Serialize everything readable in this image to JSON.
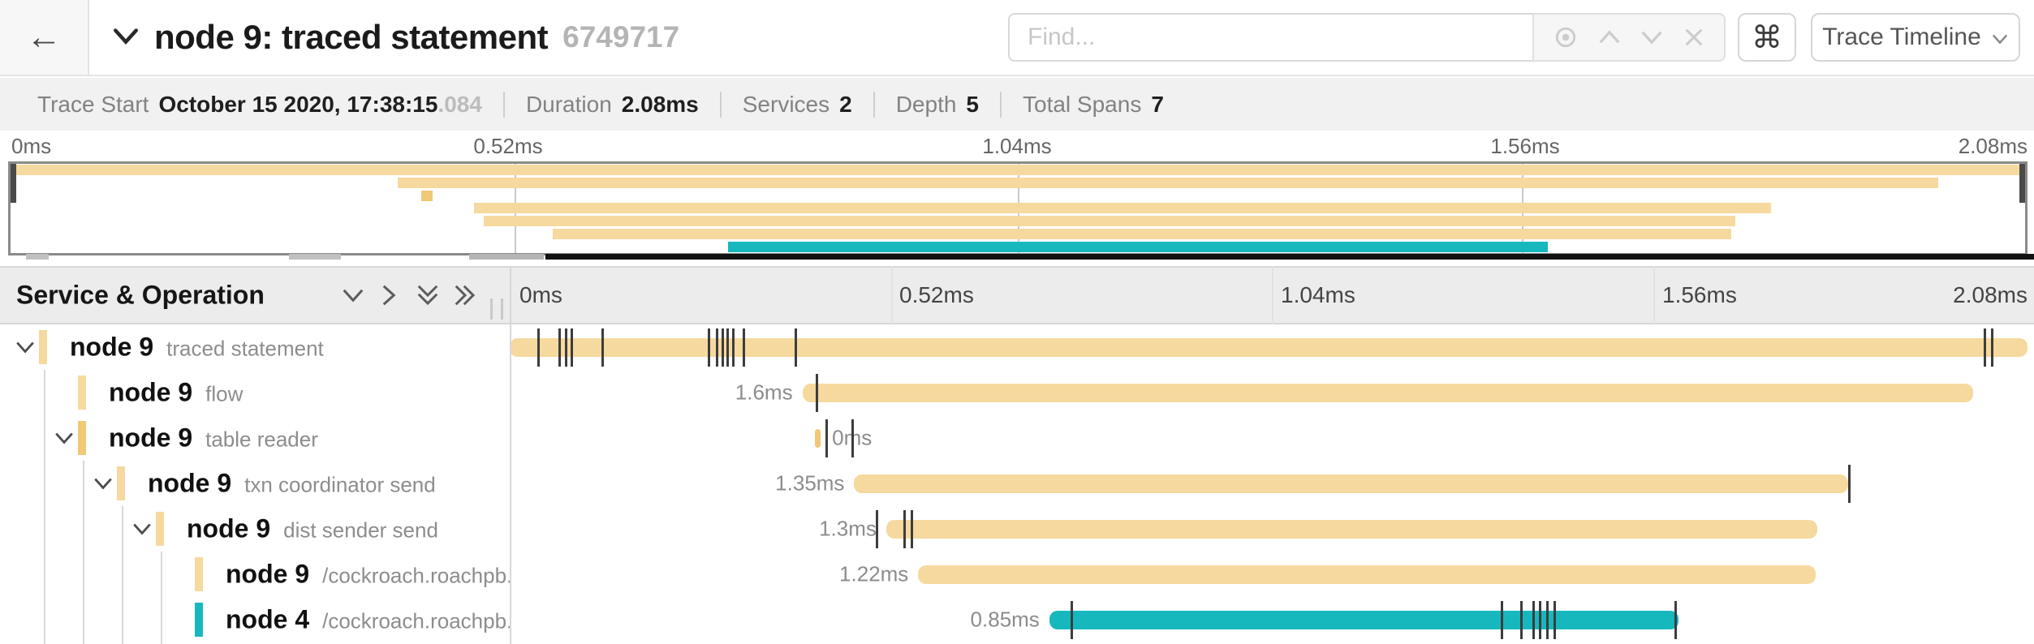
{
  "topbar": {
    "back_icon": "←",
    "title": "node 9: traced statement",
    "trace_id": "6749717",
    "find_placeholder": "Find...",
    "cmd_icon": "⌘",
    "view_selector_label": "Trace Timeline"
  },
  "summary": {
    "items": [
      {
        "label": "Trace Start",
        "value": "October 15 2020, 17:38:15",
        "extra": ".084"
      },
      {
        "label": "Duration",
        "value": "2.08ms",
        "extra": ""
      },
      {
        "label": "Services",
        "value": "2",
        "extra": ""
      },
      {
        "label": "Depth",
        "value": "5",
        "extra": ""
      },
      {
        "label": "Total Spans",
        "value": "7",
        "extra": ""
      }
    ]
  },
  "colors": {
    "tan": "#F6D99E",
    "teal": "#16B8BE",
    "tick": "#3d3d3d"
  },
  "minimap": {
    "axis_ticks": [
      "0ms",
      "0.52ms",
      "1.04ms",
      "1.56ms",
      "2.08ms"
    ],
    "rows": [
      {
        "left_pct": 0.2,
        "width_pct": 99.6,
        "color": "#F6D99E"
      },
      {
        "left_pct": 19.2,
        "width_pct": 76.5,
        "color": "#F6D99E"
      },
      {
        "left_pct": 20.4,
        "width_pct": 0.55,
        "color": "#F0C878"
      },
      {
        "left_pct": 23.0,
        "width_pct": 64.4,
        "color": "#F6D99E"
      },
      {
        "left_pct": 23.5,
        "width_pct": 62.1,
        "color": "#F6D99E"
      },
      {
        "left_pct": 26.9,
        "width_pct": 58.5,
        "color": "#F6D99E"
      },
      {
        "left_pct": 35.6,
        "width_pct": 40.7,
        "color": "#16B8BE"
      }
    ]
  },
  "timeline_header": {
    "left_title": "Service & Operation",
    "ticks": [
      "0ms",
      "0.52ms",
      "1.04ms",
      "1.56ms",
      "2.08ms"
    ]
  },
  "spans": [
    {
      "service": "node 9",
      "operation": "traced statement",
      "duration_label": "",
      "label_side": "left",
      "bar": {
        "left_pct": 0,
        "width_pct": 99.6,
        "color": "#F6D99E"
      },
      "ticks_pct": [
        1.8,
        3.2,
        3.6,
        4.0,
        6.0,
        13.0,
        13.5,
        13.9,
        14.2,
        14.6,
        15.3,
        18.7,
        96.7,
        97.2
      ]
    },
    {
      "service": "node 9",
      "operation": "flow",
      "duration_label": "1.6ms",
      "label_side": "left",
      "bar": {
        "left_pct": 19.2,
        "width_pct": 76.8,
        "color": "#F6D99E"
      },
      "ticks_pct": [
        20.1
      ]
    },
    {
      "service": "node 9",
      "operation": "table reader",
      "duration_label": "0ms",
      "label_side": "right",
      "bar": {
        "left_pct": 20.0,
        "width_pct": 0.4,
        "color": "#F0C878"
      },
      "ticks_pct": [
        20.7,
        22.4
      ]
    },
    {
      "service": "node 9",
      "operation": "txn coordinator send",
      "duration_label": "1.35ms",
      "label_side": "left",
      "bar": {
        "left_pct": 22.6,
        "width_pct": 65.2,
        "color": "#F6D99E"
      },
      "ticks_pct": [
        87.8
      ]
    },
    {
      "service": "node 9",
      "operation": "dist sender send",
      "duration_label": "1.3ms",
      "label_side": "left",
      "bar": {
        "left_pct": 24.7,
        "width_pct": 61.1,
        "color": "#F6D99E"
      },
      "ticks_pct": [
        24.0,
        25.8,
        26.3
      ]
    },
    {
      "service": "node 9",
      "operation": "/cockroach.roachpb.I...",
      "duration_label": "1.22ms",
      "label_side": "left",
      "bar": {
        "left_pct": 26.8,
        "width_pct": 58.9,
        "color": "#F6D99E"
      },
      "ticks_pct": []
    },
    {
      "service": "node 4",
      "operation": "/cockroach.roachpb.I...",
      "duration_label": "0.85ms",
      "label_side": "left",
      "bar": {
        "left_pct": 35.4,
        "width_pct": 41.3,
        "color": "#16B8BE"
      },
      "ticks_pct": [
        36.8,
        65.0,
        66.3,
        67.1,
        67.5,
        68.0,
        68.5,
        76.4
      ]
    }
  ]
}
